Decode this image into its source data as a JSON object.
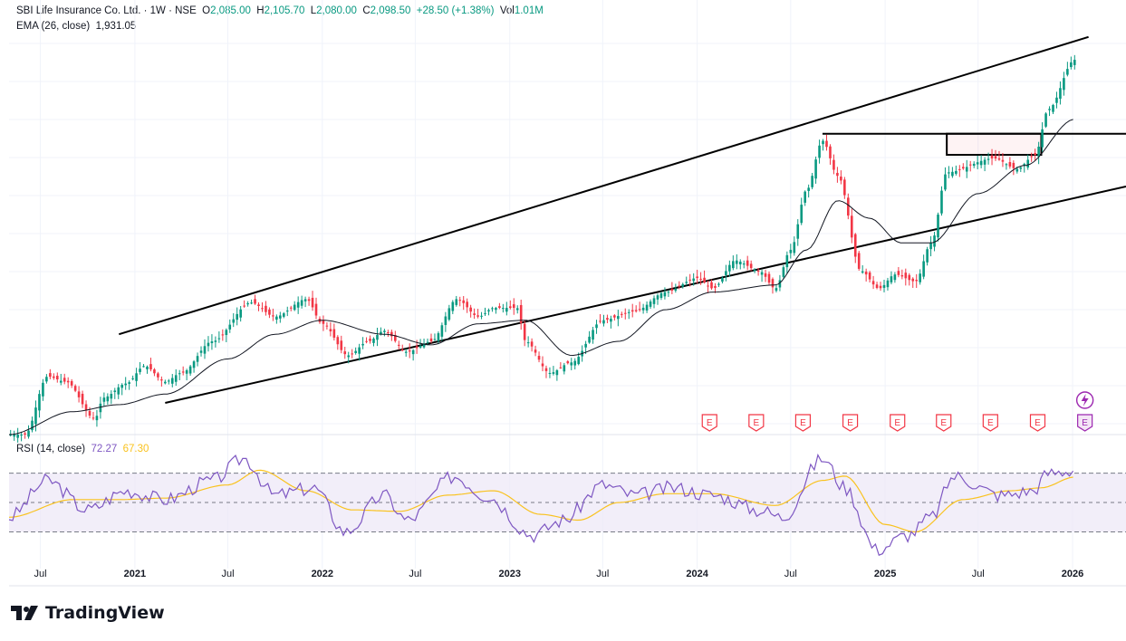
{
  "header": {
    "symbol": "SBI Life Insurance Co. Ltd. · 1W · NSE",
    "open_label": "O",
    "open": "2,085.00",
    "high_label": "H",
    "high": "2,105.70",
    "low_label": "L",
    "low": "2,080.00",
    "close_label": "C",
    "close": "2,098.50",
    "change": "+28.50 (+1.38%)",
    "vol_label": "Vol",
    "vol": "1.01M",
    "ema_label": "EMA (26, close)",
    "ema_value": "1,931.05"
  },
  "rsi_legend": {
    "label": "RSI (14, close)",
    "rsi_value": "72.27",
    "ma_value": "67.30"
  },
  "brand": {
    "name": "TradingView"
  },
  "colors": {
    "up": "#089981",
    "down": "#f23645",
    "ema": "#131722",
    "rsi": "#7e57c2",
    "rsi_ma": "#f9c21e",
    "rsi_band": "#ede7f6",
    "earnings": "#f23645"
  },
  "icons": [
    "earnings-icon",
    "lightning-icon",
    "tradingview-logo-icon"
  ],
  "chart_data": {
    "type": "candlestick",
    "x_range": [
      "2020-05-01",
      "2026-04-15"
    ],
    "y_range": [
      1035,
      2270
    ],
    "x_ticks": [
      {
        "label": "Jul",
        "date": "2020-07-01"
      },
      {
        "label": "2021",
        "date": "2021-01-01"
      },
      {
        "label": "Jul",
        "date": "2021-07-01"
      },
      {
        "label": "2022",
        "date": "2022-01-01"
      },
      {
        "label": "Jul",
        "date": "2022-07-01"
      },
      {
        "label": "2023",
        "date": "2023-01-01"
      },
      {
        "label": "Jul",
        "date": "2023-07-01"
      },
      {
        "label": "2024",
        "date": "2024-01-01"
      },
      {
        "label": "Jul",
        "date": "2024-07-01"
      },
      {
        "label": "2025",
        "date": "2025-01-01"
      },
      {
        "label": "Jul",
        "date": "2025-07-01"
      },
      {
        "label": "2026",
        "date": "2026-01-01"
      }
    ],
    "price_path": [
      [
        "2020-06-01",
        1035
      ],
      [
        "2020-07-15",
        1200
      ],
      [
        "2020-08-20",
        1185
      ],
      [
        "2020-10-15",
        1080
      ],
      [
        "2020-11-01",
        1140
      ],
      [
        "2020-12-15",
        1180
      ],
      [
        "2021-01-20",
        1230
      ],
      [
        "2021-03-01",
        1185
      ],
      [
        "2021-04-01",
        1210
      ],
      [
        "2021-06-01",
        1300
      ],
      [
        "2021-08-15",
        1410
      ],
      [
        "2021-10-01",
        1370
      ],
      [
        "2021-12-01",
        1420
      ],
      [
        "2022-01-01",
        1350
      ],
      [
        "2022-02-20",
        1260
      ],
      [
        "2022-04-01",
        1300
      ],
      [
        "2022-05-01",
        1330
      ],
      [
        "2022-06-15",
        1270
      ],
      [
        "2022-08-01",
        1300
      ],
      [
        "2022-09-20",
        1420
      ],
      [
        "2022-11-01",
        1370
      ],
      [
        "2022-12-01",
        1395
      ],
      [
        "2023-01-15",
        1395
      ],
      [
        "2023-02-01",
        1300
      ],
      [
        "2023-03-20",
        1210
      ],
      [
        "2023-05-01",
        1240
      ],
      [
        "2023-07-01",
        1360
      ],
      [
        "2023-09-01",
        1385
      ],
      [
        "2023-11-01",
        1440
      ],
      [
        "2024-01-01",
        1480
      ],
      [
        "2024-02-01",
        1450
      ],
      [
        "2024-03-15",
        1530
      ],
      [
        "2024-05-01",
        1500
      ],
      [
        "2024-06-01",
        1450
      ],
      [
        "2024-07-01",
        1560
      ],
      [
        "2024-08-01",
        1730
      ],
      [
        "2024-09-01",
        1870
      ],
      [
        "2024-10-01",
        1770
      ],
      [
        "2024-11-15",
        1500
      ],
      [
        "2024-12-20",
        1450
      ],
      [
        "2025-01-20",
        1490
      ],
      [
        "2025-03-01",
        1470
      ],
      [
        "2025-04-01",
        1580
      ],
      [
        "2025-05-01",
        1780
      ],
      [
        "2025-08-01",
        1820
      ],
      [
        "2025-09-15",
        1790
      ],
      [
        "2025-10-20",
        1830
      ],
      [
        "2025-11-15",
        1960
      ],
      [
        "2026-01-05",
        2100
      ]
    ],
    "ema_path": [
      [
        "2020-05-01",
        1035
      ],
      [
        "2020-09-01",
        1100
      ],
      [
        "2020-12-01",
        1120
      ],
      [
        "2021-03-01",
        1150
      ],
      [
        "2021-07-01",
        1250
      ],
      [
        "2021-10-01",
        1320
      ],
      [
        "2022-01-01",
        1360
      ],
      [
        "2022-05-01",
        1320
      ],
      [
        "2022-08-01",
        1290
      ],
      [
        "2022-11-01",
        1350
      ],
      [
        "2023-02-01",
        1360
      ],
      [
        "2023-05-01",
        1260
      ],
      [
        "2023-08-01",
        1300
      ],
      [
        "2023-11-01",
        1390
      ],
      [
        "2024-02-01",
        1440
      ],
      [
        "2024-06-01",
        1460
      ],
      [
        "2024-08-01",
        1560
      ],
      [
        "2024-10-01",
        1700
      ],
      [
        "2024-12-01",
        1650
      ],
      [
        "2025-02-01",
        1580
      ],
      [
        "2025-04-01",
        1580
      ],
      [
        "2025-07-01",
        1720
      ],
      [
        "2025-10-01",
        1800
      ],
      [
        "2026-01-05",
        1931
      ]
    ],
    "trendlines": [
      {
        "name": "channel-upper",
        "from": [
          "2020-12-01",
          1320
        ],
        "to": [
          "2026-02-01",
          2165
        ]
      },
      {
        "name": "channel-lower",
        "from": [
          "2021-03-01",
          1125
        ],
        "to": [
          "2026-04-15",
          1740
        ]
      },
      {
        "name": "horizontal-resistance",
        "from": [
          "2024-09-01",
          1890
        ],
        "to": [
          "2026-04-15",
          1890
        ]
      }
    ],
    "box": {
      "from": [
        "2025-05-01",
        1890
      ],
      "to": [
        "2025-11-01",
        1830
      ]
    },
    "earnings_dates": [
      "2024-01-25",
      "2024-04-25",
      "2024-07-25",
      "2024-10-25",
      "2025-01-25",
      "2025-04-25",
      "2025-07-25",
      "2025-10-25",
      "2026-01-25"
    ],
    "rsi": {
      "range": [
        10,
        95
      ],
      "levels": [
        70,
        50,
        30
      ],
      "path": [
        [
          "2020-05-01",
          40
        ],
        [
          "2020-07-15",
          65
        ],
        [
          "2020-10-01",
          45
        ],
        [
          "2020-12-15",
          58
        ],
        [
          "2021-03-01",
          52
        ],
        [
          "2021-06-01",
          65
        ],
        [
          "2021-08-01",
          80
        ],
        [
          "2021-10-01",
          55
        ],
        [
          "2021-12-15",
          60
        ],
        [
          "2022-02-15",
          30
        ],
        [
          "2022-05-01",
          55
        ],
        [
          "2022-06-15",
          38
        ],
        [
          "2022-09-15",
          68
        ],
        [
          "2022-11-15",
          55
        ],
        [
          "2023-02-15",
          28
        ],
        [
          "2023-04-15",
          38
        ],
        [
          "2023-07-01",
          62
        ],
        [
          "2023-09-01",
          55
        ],
        [
          "2023-11-15",
          60
        ],
        [
          "2024-02-01",
          55
        ],
        [
          "2024-05-01",
          45
        ],
        [
          "2024-06-15",
          40
        ],
        [
          "2024-09-01",
          80
        ],
        [
          "2024-10-15",
          60
        ],
        [
          "2024-12-15",
          18
        ],
        [
          "2025-02-15",
          28
        ],
        [
          "2025-04-01",
          40
        ],
        [
          "2025-05-15",
          68
        ],
        [
          "2025-08-15",
          55
        ],
        [
          "2025-10-15",
          58
        ],
        [
          "2025-11-15",
          70
        ],
        [
          "2026-01-05",
          72.27
        ]
      ],
      "ma_path": [
        [
          "2020-05-01",
          40
        ],
        [
          "2020-09-01",
          52
        ],
        [
          "2020-12-01",
          52
        ],
        [
          "2021-03-01",
          53
        ],
        [
          "2021-07-01",
          62
        ],
        [
          "2021-09-01",
          72
        ],
        [
          "2021-12-01",
          58
        ],
        [
          "2022-03-01",
          45
        ],
        [
          "2022-06-01",
          44
        ],
        [
          "2022-09-01",
          55
        ],
        [
          "2022-12-01",
          58
        ],
        [
          "2023-03-01",
          42
        ],
        [
          "2023-05-15",
          38
        ],
        [
          "2023-08-01",
          50
        ],
        [
          "2023-11-01",
          56
        ],
        [
          "2024-02-01",
          56
        ],
        [
          "2024-06-01",
          48
        ],
        [
          "2024-09-01",
          65
        ],
        [
          "2024-10-15",
          68
        ],
        [
          "2025-01-01",
          35
        ],
        [
          "2025-03-01",
          30
        ],
        [
          "2025-06-01",
          52
        ],
        [
          "2025-09-01",
          58
        ],
        [
          "2025-11-01",
          60
        ],
        [
          "2026-01-05",
          67.3
        ]
      ]
    }
  }
}
